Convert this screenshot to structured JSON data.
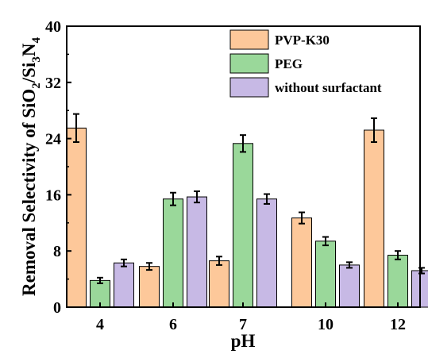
{
  "chart_data": {
    "type": "bar",
    "title": "",
    "xlabel": "pH",
    "ylabel_parts": [
      {
        "t": "Removal Selectivity of SiO",
        "s": 0
      },
      {
        "t": "2",
        "s": 1
      },
      {
        "t": "/Si",
        "s": 0
      },
      {
        "t": "3",
        "s": 1
      },
      {
        "t": "N",
        "s": 0
      },
      {
        "t": "4",
        "s": 1
      }
    ],
    "categories": [
      "4",
      "6",
      "7",
      "10",
      "12"
    ],
    "ylim": [
      0,
      40
    ],
    "yticks": [
      "0",
      "8",
      "16",
      "24",
      "32",
      "40"
    ],
    "grid": false,
    "legend_position": "top-right",
    "series": [
      {
        "name": "PVP-K30",
        "color": "#FDC89A",
        "values": [
          25.5,
          5.8,
          6.6,
          12.7,
          25.2
        ],
        "errors": [
          2.0,
          0.5,
          0.6,
          0.8,
          1.7
        ]
      },
      {
        "name": "PEG",
        "color": "#9AD89A",
        "values": [
          3.8,
          15.4,
          23.3,
          9.4,
          7.4
        ],
        "errors": [
          0.4,
          0.9,
          1.2,
          0.6,
          0.6
        ]
      },
      {
        "name": "without surfactant",
        "color": "#C7B9E5",
        "values": [
          6.3,
          15.7,
          15.4,
          6.0,
          5.2
        ],
        "errors": [
          0.5,
          0.8,
          0.7,
          0.4,
          0.4
        ]
      }
    ]
  }
}
